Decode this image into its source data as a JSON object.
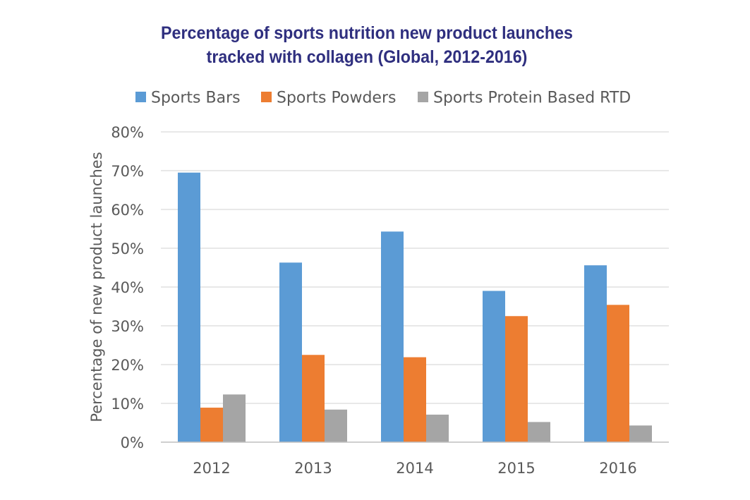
{
  "chart_data": {
    "type": "bar",
    "title_lines": [
      "Percentage of sports nutrition new product launches",
      "tracked with collagen (Global, 2012-2016)"
    ],
    "ylabel": "Percentage of new product launches",
    "xlabel": "",
    "categories": [
      "2012",
      "2013",
      "2014",
      "2015",
      "2016"
    ],
    "ylim": [
      0,
      80
    ],
    "yticks": [
      0,
      10,
      20,
      30,
      40,
      50,
      60,
      70,
      80
    ],
    "ytick_labels": [
      "0%",
      "10%",
      "20%",
      "30%",
      "40%",
      "50%",
      "60%",
      "70%",
      "80%"
    ],
    "legend_position": "top",
    "grid": true,
    "series": [
      {
        "name": "Sports Bars",
        "color": "#5b9bd5",
        "values": [
          69.5,
          46.3,
          54.3,
          39.0,
          45.6
        ]
      },
      {
        "name": "Sports Powders",
        "color": "#ed7d31",
        "values": [
          8.9,
          22.5,
          21.9,
          32.5,
          35.4
        ]
      },
      {
        "name": "Sports Protein Based RTD",
        "color": "#a5a5a5",
        "values": [
          12.3,
          8.4,
          7.1,
          5.2,
          4.3
        ]
      }
    ]
  }
}
